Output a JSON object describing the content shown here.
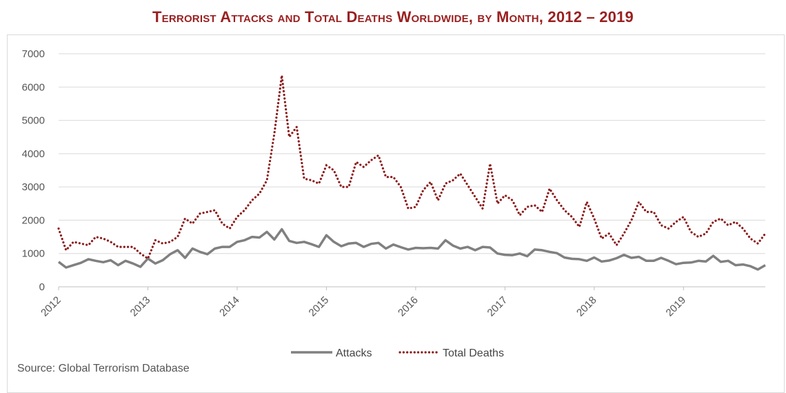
{
  "page": {
    "title": "Terrorist Attacks and Total Deaths Worldwide, by Month, 2012 – 2019",
    "source": "Source: Global Terrorism Database"
  },
  "chart_data": {
    "type": "line",
    "title": "Terrorist Attacks and Total Deaths Worldwide, by Month, 2012 – 2019",
    "xlabel": "",
    "ylabel": "",
    "ylim": [
      0,
      7000
    ],
    "yticks": [
      0,
      1000,
      2000,
      3000,
      4000,
      5000,
      6000,
      7000
    ],
    "xticks": [
      "2012",
      "2013",
      "2014",
      "2015",
      "2016",
      "2017",
      "2018",
      "2019"
    ],
    "grid": "horizontal",
    "legend_position": "bottom",
    "x_start": "2012-01",
    "x_end": "2019-12",
    "series": [
      {
        "name": "Attacks",
        "style": "solid",
        "color": "#808080",
        "values": [
          750,
          580,
          650,
          720,
          830,
          780,
          740,
          800,
          650,
          780,
          700,
          600,
          850,
          700,
          800,
          980,
          1100,
          870,
          1150,
          1050,
          980,
          1150,
          1200,
          1200,
          1350,
          1400,
          1500,
          1480,
          1650,
          1420,
          1730,
          1380,
          1320,
          1350,
          1280,
          1200,
          1550,
          1350,
          1220,
          1300,
          1320,
          1200,
          1290,
          1320,
          1150,
          1270,
          1190,
          1120,
          1170,
          1160,
          1170,
          1150,
          1400,
          1240,
          1150,
          1200,
          1100,
          1200,
          1180,
          1000,
          960,
          950,
          1000,
          920,
          1120,
          1100,
          1050,
          1010,
          880,
          840,
          830,
          780,
          880,
          760,
          790,
          860,
          960,
          870,
          900,
          780,
          780,
          870,
          780,
          680,
          720,
          730,
          780,
          760,
          930,
          750,
          780,
          650,
          670,
          620,
          520,
          650
        ]
      },
      {
        "name": "Total Deaths",
        "style": "dotted",
        "color": "#8b1a1a",
        "values": [
          1750,
          1100,
          1350,
          1300,
          1250,
          1500,
          1450,
          1350,
          1200,
          1200,
          1200,
          1000,
          850,
          1400,
          1300,
          1350,
          1500,
          2050,
          1900,
          2200,
          2250,
          2300,
          1900,
          1750,
          2100,
          2300,
          2600,
          2800,
          3200,
          4600,
          6350,
          4500,
          4800,
          3250,
          3200,
          3100,
          3650,
          3500,
          3000,
          3000,
          3750,
          3600,
          3800,
          3950,
          3300,
          3300,
          3000,
          2350,
          2400,
          2900,
          3150,
          2600,
          3100,
          3200,
          3400,
          3050,
          2700,
          2350,
          3700,
          2500,
          2750,
          2600,
          2150,
          2400,
          2450,
          2250,
          2950,
          2600,
          2300,
          2100,
          1800,
          2550,
          2050,
          1450,
          1600,
          1250,
          1600,
          2000,
          2550,
          2250,
          2250,
          1850,
          1750,
          1950,
          2100,
          1650,
          1500,
          1600,
          1950,
          2050,
          1850,
          1950,
          1750,
          1450,
          1300,
          1600
        ]
      }
    ]
  }
}
